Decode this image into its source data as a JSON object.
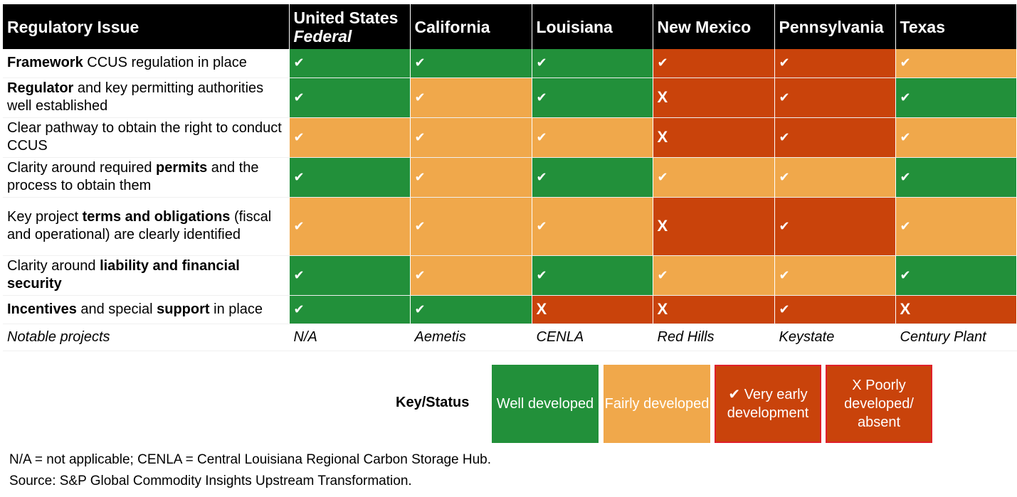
{
  "columns": [
    {
      "title": "Regulatory Issue"
    },
    {
      "title": "United States",
      "subtitle": "Federal"
    },
    {
      "title": "California"
    },
    {
      "title": "Louisiana"
    },
    {
      "title": "New Mexico"
    },
    {
      "title": "Pennsylvania"
    },
    {
      "title": "Texas"
    }
  ],
  "colors": {
    "well": "#22903a",
    "fairly": "#f0a84b",
    "early": "#c9430b",
    "poor": "#c9430b"
  },
  "rows": [
    {
      "parts": [
        [
          "Framework",
          true
        ],
        [
          " CCUS regulation in place",
          false
        ]
      ],
      "cells": [
        [
          "g",
          "✔"
        ],
        [
          "g",
          "✔"
        ],
        [
          "g",
          "✔"
        ],
        [
          "r",
          "✔"
        ],
        [
          "r",
          "✔"
        ],
        [
          "f",
          "✔"
        ]
      ]
    },
    {
      "parts": [
        [
          "Regulator",
          true
        ],
        [
          " and key permitting authorities well established",
          false
        ]
      ],
      "cells": [
        [
          "g",
          "✔"
        ],
        [
          "f",
          "✔"
        ],
        [
          "g",
          "✔"
        ],
        [
          "r",
          "X"
        ],
        [
          "r",
          "✔"
        ],
        [
          "g",
          "✔"
        ]
      ]
    },
    {
      "parts": [
        [
          "Clear pathway to obtain the right to conduct CCUS",
          false
        ]
      ],
      "cells": [
        [
          "f",
          "✔"
        ],
        [
          "f",
          "✔"
        ],
        [
          "f",
          "✔"
        ],
        [
          "r",
          "X"
        ],
        [
          "r",
          "✔"
        ],
        [
          "f",
          "✔"
        ]
      ]
    },
    {
      "parts": [
        [
          "Clarity around required ",
          false
        ],
        [
          "permits",
          true
        ],
        [
          " and the process to obtain them",
          false
        ]
      ],
      "cells": [
        [
          "g",
          "✔"
        ],
        [
          "f",
          "✔"
        ],
        [
          "g",
          "✔"
        ],
        [
          "f",
          "✔"
        ],
        [
          "f",
          "✔"
        ],
        [
          "g",
          "✔"
        ]
      ]
    },
    {
      "parts": [
        [
          "Key project ",
          false
        ],
        [
          "terms and obligations",
          true
        ],
        [
          " (fiscal and operational) are clearly identified",
          false
        ]
      ],
      "cells": [
        [
          "f",
          "✔"
        ],
        [
          "f",
          "✔"
        ],
        [
          "f",
          "✔"
        ],
        [
          "r",
          "X"
        ],
        [
          "r",
          "✔"
        ],
        [
          "f",
          "✔"
        ]
      ]
    },
    {
      "parts": [
        [
          "Clarity around ",
          false
        ],
        [
          "liability and financial security",
          true
        ]
      ],
      "cells": [
        [
          "g",
          "✔"
        ],
        [
          "f",
          "✔"
        ],
        [
          "g",
          "✔"
        ],
        [
          "f",
          "✔"
        ],
        [
          "f",
          "✔"
        ],
        [
          "g",
          "✔"
        ]
      ]
    },
    {
      "parts": [
        [
          "Incentives",
          true
        ],
        [
          " and special ",
          false
        ],
        [
          "support",
          true
        ],
        [
          " in place",
          false
        ]
      ],
      "cells": [
        [
          "g",
          "✔"
        ],
        [
          "g",
          "✔"
        ],
        [
          "r",
          "X"
        ],
        [
          "r",
          "X"
        ],
        [
          "r",
          "✔"
        ],
        [
          "r",
          "X"
        ]
      ]
    }
  ],
  "projects": [
    "Notable projects",
    "N/A",
    "Aemetis",
    "CENLA",
    "Red Hills",
    "Keystate",
    "Century Plant"
  ],
  "legend": {
    "label": "Key/Status",
    "items": [
      {
        "text": "Well developed"
      },
      {
        "text": "Fairly developed"
      },
      {
        "text": "✔ Very early development"
      },
      {
        "text": "X Poorly developed/ absent"
      }
    ]
  },
  "notes": [
    "N/A = not applicable; CENLA = Central Louisiana Regional Carbon Storage Hub.",
    "Source: S&P Global Commodity Insights Upstream Transformation."
  ]
}
